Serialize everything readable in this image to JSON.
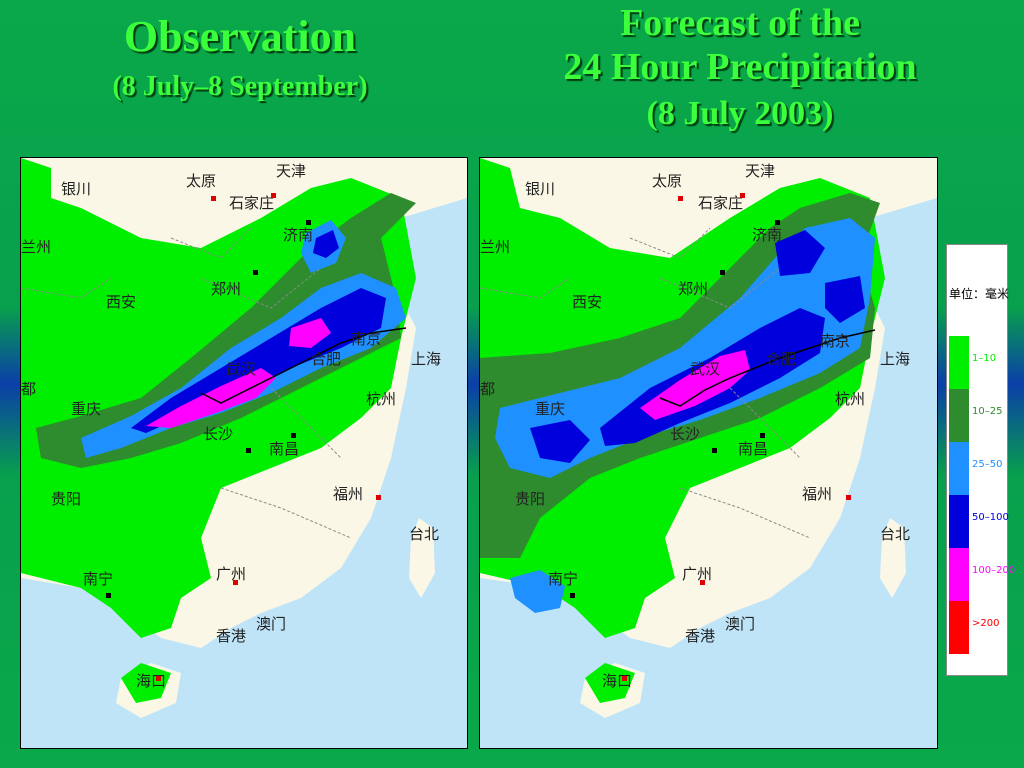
{
  "observation": {
    "title": "Observation",
    "subtitle": "(8 July–8 September)"
  },
  "forecast": {
    "title_line1": "Forecast of  the",
    "title_line2": "24 Hour Precipitation",
    "title_line3": "(8 July  2003)"
  },
  "cities": {
    "yinchuan": "银川",
    "taiyuan": "太原",
    "tianjin": "天津",
    "shijiazhuang": "石家庄",
    "lanzhou": "兰州",
    "jinan": "济南",
    "xian": "西安",
    "zhengzhou": "郑州",
    "nanjing": "南京",
    "hefei": "合肥",
    "wuhan": "武汉",
    "shanghai": "上海",
    "chengdu": "都",
    "chongqing": "重庆",
    "hangzhou": "杭州",
    "changsha": "长沙",
    "nanchang": "南昌",
    "guiyang": "贵阳",
    "fuzhou": "福州",
    "taibei": "台北",
    "nanning": "南宁",
    "guangzhou": "广州",
    "aomen": "澳门",
    "xianggang": "香港",
    "haikou": "海口"
  },
  "legend": {
    "title": "单位：毫米",
    "items": [
      {
        "label": "1–10",
        "color": "#00ee00"
      },
      {
        "label": "10–25",
        "color": "#2e8b2e"
      },
      {
        "label": "25–50",
        "color": "#1e90ff"
      },
      {
        "label": "50–100",
        "color": "#0000dd"
      },
      {
        "label": "100–200",
        "color": "#ff00ff"
      },
      {
        "label": ">200",
        "color": "#ff0000"
      }
    ]
  },
  "colors": {
    "land": "#fbf7e6",
    "sea": "#bfe4f7",
    "light_green": "#00ee00",
    "dark_green": "#2e8b2e",
    "light_blue": "#1e90ff",
    "dark_blue": "#0000dd",
    "magenta": "#ff00ff"
  }
}
